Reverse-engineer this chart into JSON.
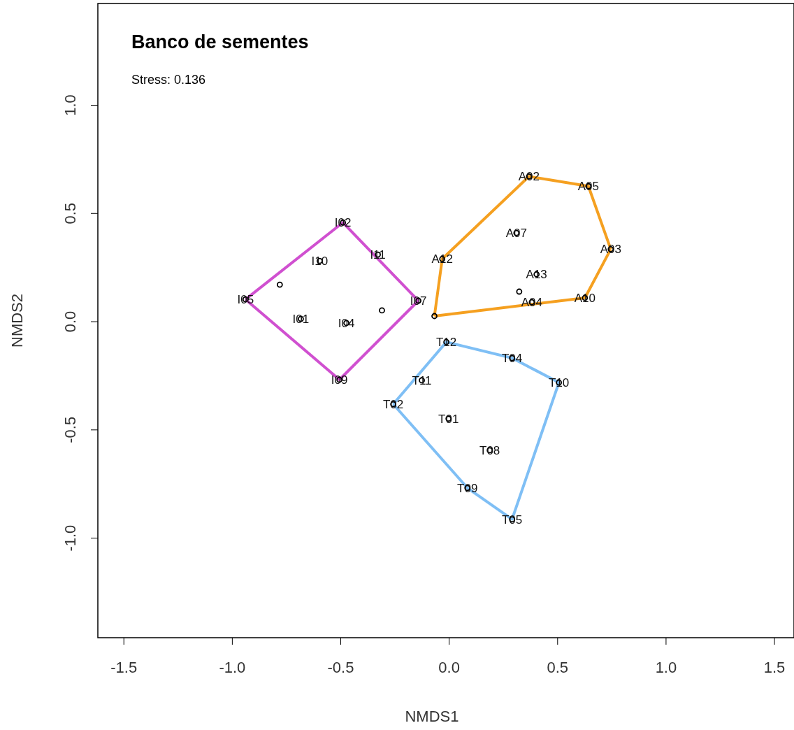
{
  "chart_data": {
    "type": "scatter",
    "title": "Banco de sementes",
    "subtitle": "Stress: 0.136",
    "xlabel": "NMDS1",
    "ylabel": "NMDS2",
    "xlim": [
      -1.62,
      1.59
    ],
    "ylim": [
      -1.46,
      1.47
    ],
    "xticks": [
      -1.5,
      {
        "value": -1.0,
        "label": "-1.0"
      },
      -0.5,
      {
        "value": 0,
        "label": "0.0"
      },
      0.5,
      {
        "value": 1.0,
        "label": "1.0"
      },
      1.5
    ],
    "yticks": [
      {
        "value": -1.0,
        "label": "-1.0"
      },
      -0.5,
      {
        "value": 0,
        "label": "0.0"
      },
      0.5,
      {
        "value": 1.0,
        "label": "1.0"
      }
    ],
    "grid": false,
    "series": [
      {
        "type": "line",
        "color": "#d050d0",
        "marker": "none",
        "x": [
          -0.939,
          -0.49,
          -0.142
        ],
        "values": [
          0.103,
          0.458,
          0.097
        ]
      },
      {
        "type": "line",
        "color": "#d050d0",
        "marker": "none",
        "x": [
          -0.939,
          -0.506,
          -0.142
        ],
        "values": [
          0.103,
          -0.268,
          0.097
        ]
      },
      {
        "type": "line",
        "color": "#f5a020",
        "marker": "none",
        "x": [
          -0.068,
          -0.032,
          0.368,
          0.642,
          0.745
        ],
        "values": [
          0.026,
          0.29,
          0.671,
          0.626,
          0.335
        ]
      },
      {
        "type": "line",
        "color": "#f5a020",
        "marker": "none",
        "x": [
          -0.068,
          0.626,
          0.745
        ],
        "values": [
          0.026,
          0.11,
          0.335
        ]
      },
      {
        "type": "line",
        "color": "#7fbff5",
        "marker": "none",
        "x": [
          -0.258,
          -0.013,
          0.29,
          0.506
        ],
        "values": [
          -0.381,
          -0.094,
          -0.168,
          -0.281
        ]
      },
      {
        "type": "line",
        "color": "#7fbff5",
        "marker": "none",
        "x": [
          -0.258,
          0.084,
          0.29,
          0.506
        ],
        "values": [
          -0.381,
          -0.768,
          -0.913,
          -0.281
        ]
      },
      {
        "color": "#000000",
        "marker": "circle",
        "x": [
          -0.49,
          -0.597,
          -0.329,
          -0.939,
          -0.142,
          -0.684,
          -0.474,
          -0.506,
          -0.781,
          -0.31,
          0.368,
          0.642,
          0.31,
          0.745,
          -0.032,
          0.403,
          0.323,
          0.381,
          0.626,
          -0.068,
          -0.013,
          0.29,
          0.506,
          -0.126,
          -0.258,
          -0.003,
          0.187,
          0.084,
          0.29
        ],
        "values": [
          0.458,
          0.281,
          0.31,
          0.103,
          0.097,
          0.013,
          -0.006,
          -0.268,
          0.171,
          0.052,
          0.671,
          0.626,
          0.41,
          0.335,
          0.29,
          0.219,
          0.139,
          0.09,
          0.11,
          0.026,
          -0.094,
          -0.168,
          -0.281,
          -0.271,
          -0.381,
          -0.448,
          -0.594,
          -0.768,
          -0.913
        ]
      }
    ],
    "annotations": [
      {
        "text": "I02",
        "x": -0.49,
        "y": 0.458
      },
      {
        "text": "I10",
        "x": -0.597,
        "y": 0.281
      },
      {
        "text": "I11",
        "x": -0.329,
        "y": 0.31
      },
      {
        "text": "I05",
        "x": -0.939,
        "y": 0.103
      },
      {
        "text": "I07",
        "x": -0.142,
        "y": 0.097
      },
      {
        "text": "I01",
        "x": -0.684,
        "y": 0.013
      },
      {
        "text": "I04",
        "x": -0.474,
        "y": -0.006
      },
      {
        "text": "I09",
        "x": -0.506,
        "y": -0.268
      },
      {
        "text": "A02",
        "x": 0.368,
        "y": 0.671
      },
      {
        "text": "A05",
        "x": 0.642,
        "y": 0.626
      },
      {
        "text": "A07",
        "x": 0.31,
        "y": 0.41
      },
      {
        "text": "A03",
        "x": 0.745,
        "y": 0.335
      },
      {
        "text": "A12",
        "x": -0.032,
        "y": 0.29
      },
      {
        "text": "A13",
        "x": 0.403,
        "y": 0.219
      },
      {
        "text": "A04",
        "x": 0.381,
        "y": 0.09
      },
      {
        "text": "A10",
        "x": 0.626,
        "y": 0.11
      },
      {
        "text": "T12",
        "x": -0.013,
        "y": -0.094
      },
      {
        "text": "T04",
        "x": 0.29,
        "y": -0.168
      },
      {
        "text": "T10",
        "x": 0.506,
        "y": -0.281
      },
      {
        "text": "T11",
        "x": -0.126,
        "y": -0.271
      },
      {
        "text": "T02",
        "x": -0.258,
        "y": -0.381
      },
      {
        "text": "T01",
        "x": -0.003,
        "y": -0.448
      },
      {
        "text": "T08",
        "x": 0.187,
        "y": -0.594
      },
      {
        "text": "T09",
        "x": 0.084,
        "y": -0.768
      },
      {
        "text": "T05",
        "x": 0.29,
        "y": -0.913
      }
    ]
  }
}
